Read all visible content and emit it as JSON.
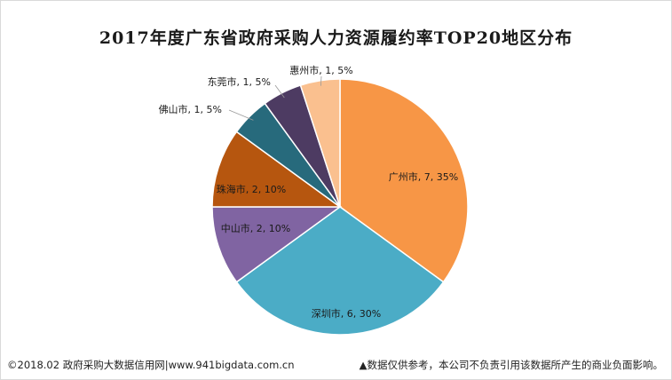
{
  "chart_data": {
    "type": "pie",
    "title": "2017年度广东省政府采购人力资源履约率TOP20地区分布",
    "slices": [
      {
        "name": "广州市",
        "value": 7,
        "percent": "35%",
        "label": "广州市, 7, 35%",
        "color": "#f79646"
      },
      {
        "name": "深圳市",
        "value": 6,
        "percent": "30%",
        "label": "深圳市, 6, 30%",
        "color": "#4bacc6"
      },
      {
        "name": "中山市",
        "value": 2,
        "percent": "10%",
        "label": "中山市, 2, 10%",
        "color": "#8064a2"
      },
      {
        "name": "珠海市",
        "value": 2,
        "percent": "10%",
        "label": "珠海市, 2, 10%",
        "color": "#b6560f"
      },
      {
        "name": "佛山市",
        "value": 1,
        "percent": "5%",
        "label": "佛山市, 1, 5%",
        "color": "#276a7c"
      },
      {
        "name": "东莞市",
        "value": 1,
        "percent": "5%",
        "label": "东莞市, 1, 5%",
        "color": "#4d3b62"
      },
      {
        "name": "惠州市",
        "value": 1,
        "percent": "5%",
        "label": "惠州市, 1, 5%",
        "color": "#fac08f"
      }
    ]
  },
  "footer": {
    "source": "©2018.02 政府采购大数据信用网|www.941bigdata.com.cn",
    "disclaimer": "▲数据仅供参考，本公司不负责引用该数据所产生的商业负面影响。"
  }
}
